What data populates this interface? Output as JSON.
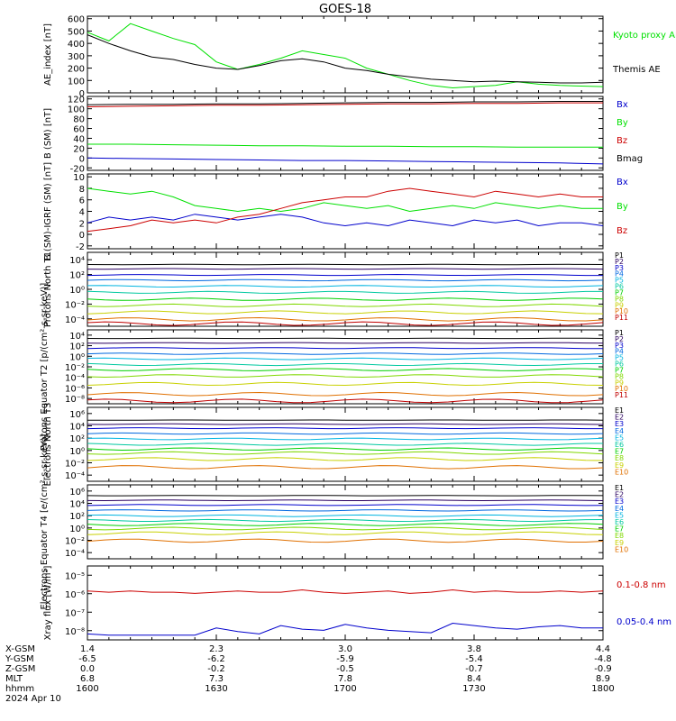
{
  "title": "GOES-18",
  "footer": {
    "row_labels": [
      "X-GSM",
      "Y-GSM",
      "Z-GSM",
      "MLT",
      "hhmm",
      "2024 Apr 10"
    ],
    "columns": [
      [
        "1.4",
        "-6.5",
        "0.0",
        "6.8",
        "1600"
      ],
      [
        "2.3",
        "-6.2",
        "-0.2",
        "7.3",
        "1630"
      ],
      [
        "3.0",
        "-5.9",
        "-0.5",
        "7.8",
        "1700"
      ],
      [
        "3.8",
        "-5.4",
        "-0.7",
        "8.4",
        "1730"
      ],
      [
        "4.4",
        "-4.8",
        "-0.9",
        "8.9",
        "1800"
      ]
    ]
  },
  "colors": {
    "black": "#000000",
    "green": "#00e000",
    "red": "#cc0000",
    "blue": "#0000cc",
    "channels": [
      "#000000",
      "#2a0060",
      "#0000cc",
      "#0068e0",
      "#00b4e0",
      "#00c8a0",
      "#00d000",
      "#80d800",
      "#c8d000",
      "#e07000",
      "#c00000"
    ]
  },
  "chart_data": [
    {
      "type": "line",
      "ylabel": "AE_index [nT]",
      "yticks": [
        "0",
        "100",
        "200",
        "300",
        "400",
        "500",
        "600"
      ],
      "ylim": [
        0,
        620
      ],
      "x": [
        0,
        5,
        10,
        15,
        20,
        25,
        30,
        35,
        40,
        45,
        50,
        55,
        60,
        65,
        70,
        75,
        80,
        85,
        90,
        95,
        100,
        105,
        110,
        115,
        120
      ],
      "series": [
        {
          "name": "Kyoto proxy AE",
          "color": "#00e000",
          "values": [
            490,
            420,
            560,
            500,
            440,
            390,
            250,
            190,
            230,
            280,
            340,
            310,
            280,
            200,
            150,
            100,
            60,
            40,
            50,
            60,
            90,
            70,
            60,
            55,
            50
          ]
        },
        {
          "name": "Themis AE",
          "color": "#000000",
          "values": [
            470,
            400,
            340,
            290,
            270,
            230,
            200,
            190,
            220,
            260,
            275,
            250,
            200,
            180,
            150,
            130,
            110,
            100,
            90,
            95,
            90,
            85,
            80,
            80,
            85
          ]
        }
      ]
    },
    {
      "type": "line",
      "ylabel": "B (SM) [nT]",
      "yticks": [
        "-20",
        "0",
        "20",
        "40",
        "60",
        "80",
        "100",
        "120"
      ],
      "ylim": [
        -25,
        125
      ],
      "x": [
        0,
        10,
        20,
        30,
        40,
        50,
        60,
        70,
        80,
        90,
        100,
        110,
        120
      ],
      "series": [
        {
          "name": "Bx",
          "color": "#0000cc",
          "values": [
            0,
            -1,
            -2,
            -3,
            -4,
            -5,
            -5,
            -6,
            -7,
            -8,
            -9,
            -10,
            -12
          ]
        },
        {
          "name": "By",
          "color": "#00e000",
          "values": [
            28,
            28,
            27,
            26,
            25,
            25,
            24,
            24,
            23,
            23,
            22,
            22,
            22
          ]
        },
        {
          "name": "Bz",
          "color": "#cc0000",
          "values": [
            104,
            105,
            106,
            107,
            107,
            108,
            109,
            110,
            110,
            111,
            111,
            112,
            112
          ]
        },
        {
          "name": "Bmag",
          "color": "#000000",
          "values": [
            108,
            109,
            109,
            110,
            110,
            111,
            112,
            113,
            113,
            114,
            114,
            115,
            115
          ]
        }
      ]
    },
    {
      "type": "line",
      "ylabel": "B (SM)-IGRF (SM) [nT]",
      "yticks": [
        "-2",
        "0",
        "2",
        "4",
        "6",
        "8",
        "10"
      ],
      "ylim": [
        -2.5,
        10.5
      ],
      "x": [
        0,
        5,
        10,
        15,
        20,
        25,
        30,
        35,
        40,
        45,
        50,
        55,
        60,
        65,
        70,
        75,
        80,
        85,
        90,
        95,
        100,
        105,
        110,
        115,
        120
      ],
      "series": [
        {
          "name": "Bx",
          "color": "#0000cc",
          "values": [
            2,
            3,
            2.5,
            3,
            2.5,
            3.5,
            3,
            2.5,
            3,
            3.5,
            3,
            2,
            1.5,
            2,
            1.5,
            2.5,
            2,
            1.5,
            2.5,
            2,
            2.5,
            1.5,
            2,
            2,
            1.5
          ]
        },
        {
          "name": "By",
          "color": "#00e000",
          "values": [
            8,
            7.5,
            7,
            7.5,
            6.5,
            5,
            4.5,
            4,
            4.5,
            4,
            4.5,
            5.5,
            5,
            4.5,
            5,
            4,
            4.5,
            5,
            4.5,
            5.5,
            5,
            4.5,
            5,
            4.5,
            4.5
          ]
        },
        {
          "name": "Bz",
          "color": "#cc0000",
          "values": [
            0.5,
            1,
            1.5,
            2.5,
            2,
            2.5,
            2,
            3,
            3.5,
            4.5,
            5.5,
            6,
            6.5,
            6.5,
            7.5,
            8,
            7.5,
            7,
            6.5,
            7.5,
            7,
            6.5,
            7,
            6.5,
            6.5
          ]
        }
      ]
    },
    {
      "type": "line",
      "ylabel": "Protons North T1",
      "yticks": [
        "10⁻⁴",
        "10⁻²",
        "10⁰",
        "10²",
        "10⁴"
      ],
      "ylim": [
        -4.5,
        4
      ],
      "log": true,
      "channels": [
        "P1",
        "P2",
        "P3",
        "P4",
        "P5",
        "P6",
        "P7",
        "P8",
        "P9",
        "P10",
        "P11"
      ],
      "levels": [
        2.6,
        2.1,
        1.4,
        0.8,
        0.1,
        -0.6,
        -1.4,
        -2.1,
        -2.9,
        -3.7,
        -4.2
      ]
    },
    {
      "type": "line",
      "ylabel": "Protons Equator T2 [p/(cm²-s-sr-keV)]",
      "yticks": [
        "10⁻⁸",
        "10⁻⁶",
        "10⁻⁴",
        "10⁻²",
        "10⁰",
        "10²",
        "10⁴"
      ],
      "ylim": [
        -8.5,
        4.5
      ],
      "log": true,
      "channels": [
        "P1",
        "P2",
        "P3",
        "P4",
        "P5",
        "P6",
        "P7",
        "P8",
        "P9",
        "P10",
        "P11"
      ],
      "levels": [
        3.0,
        2.2,
        1.3,
        0.3,
        -0.6,
        -1.6,
        -2.5,
        -3.6,
        -5.0,
        -6.8,
        -8.0
      ]
    },
    {
      "type": "line",
      "ylabel": "Electrons North T3",
      "yticks": [
        "10⁻⁴",
        "10⁻²",
        "10⁰",
        "10²",
        "10⁴",
        "10⁶"
      ],
      "ylim": [
        -4.5,
        6.5
      ],
      "log": true,
      "channels": [
        "E1",
        "E2",
        "E3",
        "E4",
        "E5",
        "E6",
        "E7",
        "E8",
        "E9",
        "E10"
      ],
      "levels": [
        4.6,
        4.0,
        3.4,
        2.6,
        1.8,
        1.0,
        0.3,
        -0.3,
        -1.2,
        -2.4
      ]
    },
    {
      "type": "line",
      "ylabel": "Electrons Equator T4 [e/(cm²-s-sr-keV)]",
      "yticks": [
        "10⁻⁴",
        "10⁻²",
        "10⁰",
        "10²",
        "10⁴",
        "10⁶"
      ],
      "ylim": [
        -4.5,
        6.5
      ],
      "log": true,
      "channels": [
        "E1",
        "E2",
        "E3",
        "E4",
        "E5",
        "E6",
        "E7",
        "E8",
        "E9",
        "E10"
      ],
      "levels": [
        4.9,
        4.2,
        3.5,
        2.7,
        1.9,
        1.2,
        0.6,
        0.0,
        -0.7,
        -1.8
      ]
    },
    {
      "type": "line",
      "ylabel": "Xray flux [W/m²]",
      "yticks": [
        "10⁻⁸",
        "10⁻⁷",
        "10⁻⁶",
        "10⁻⁵"
      ],
      "ylim": [
        -8.1,
        -5
      ],
      "log": true,
      "x": [
        0,
        5,
        10,
        15,
        20,
        25,
        30,
        35,
        40,
        45,
        50,
        55,
        60,
        65,
        70,
        75,
        80,
        85,
        90,
        95,
        100,
        105,
        110,
        115,
        120
      ],
      "series": [
        {
          "name": "0.1-0.8 nm",
          "color": "#cc0000",
          "values": [
            -6.05,
            -6.1,
            -6.05,
            -6.1,
            -6.1,
            -6.15,
            -6.1,
            -6.05,
            -6.1,
            -6.1,
            -6.0,
            -6.1,
            -6.15,
            -6.1,
            -6.05,
            -6.15,
            -6.1,
            -6.0,
            -6.1,
            -6.05,
            -6.1,
            -6.1,
            -6.05,
            -6.1,
            -6.05
          ]
        },
        {
          "name": "0.05-0.4 nm",
          "color": "#0000cc",
          "values": [
            -7.85,
            -7.9,
            -7.9,
            -7.9,
            -7.9,
            -7.9,
            -7.6,
            -7.75,
            -7.85,
            -7.5,
            -7.65,
            -7.7,
            -7.45,
            -7.6,
            -7.7,
            -7.75,
            -7.8,
            -7.4,
            -7.5,
            -7.6,
            -7.65,
            -7.55,
            -7.5,
            -7.6,
            -7.6
          ]
        }
      ]
    }
  ]
}
